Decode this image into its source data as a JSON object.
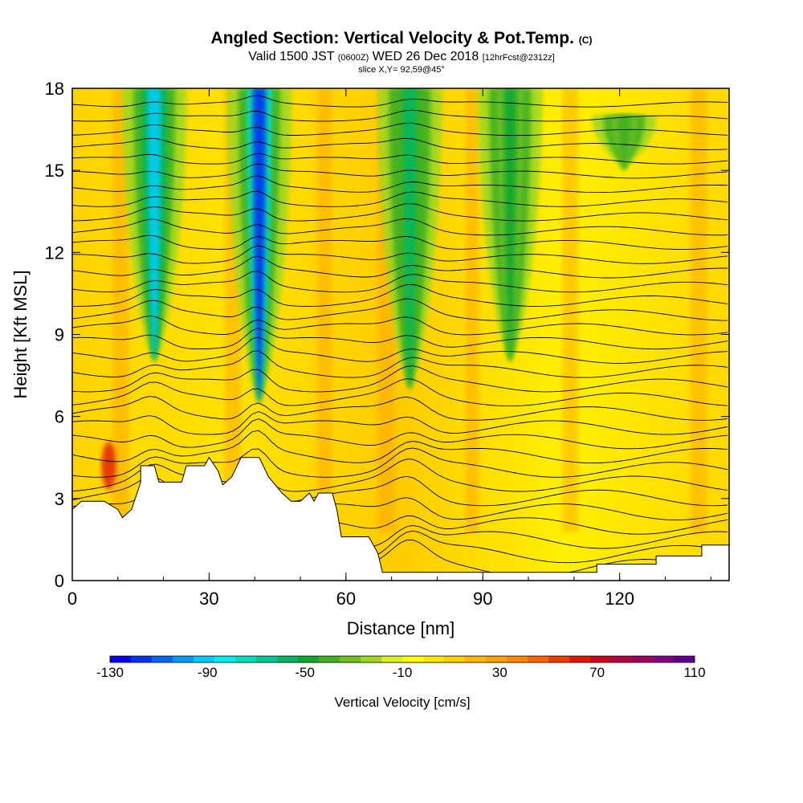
{
  "title": {
    "main": "Angled Section: Vertical Velocity & Pot.Temp.",
    "main_unit": "(C)",
    "valid_prefix": "Valid 1500 JST",
    "valid_utc": "(0600Z)",
    "valid_date": "WED 26 Dec 2018",
    "forecast": "[12hrFcst@2312z]",
    "slice": "slice X,Y= 92,59@45°"
  },
  "chart_data": {
    "type": "heatmap",
    "description_fields": "cross-section of vertical velocity (filled) with potential temperature contours",
    "xlabel": "Distance [nm]",
    "ylabel": "Height [Kft MSL]",
    "xlim": [
      0,
      144
    ],
    "ylim": [
      0,
      18
    ],
    "x_ticks": [
      0,
      30,
      60,
      90,
      120
    ],
    "y_ticks": [
      0,
      3,
      6,
      9,
      12,
      15,
      18
    ],
    "colorbar": {
      "title": "Vertical Velocity [cm/s]",
      "min": -130,
      "max": 110,
      "step": 10,
      "tick_labels": [
        -130,
        -90,
        -50,
        -10,
        30,
        70,
        110
      ],
      "colors": [
        "#0000ee",
        "#0033f2",
        "#0066f6",
        "#0099fa",
        "#00ccfc",
        "#00f0f0",
        "#00dcc0",
        "#00c890",
        "#00b860",
        "#10a830",
        "#40b020",
        "#70c020",
        "#a0d820",
        "#d8f020",
        "#ffff00",
        "#ffe600",
        "#ffd000",
        "#ffb800",
        "#ffa000",
        "#ff8400",
        "#ff6400",
        "#f03c00",
        "#e01800",
        "#d00020",
        "#b80040",
        "#9c0060",
        "#800080",
        "#600090"
      ]
    },
    "updrafts_downdrafts": [
      {
        "x_center": 18,
        "min_velocity": -90,
        "top_kft": 18,
        "base_kft": 8
      },
      {
        "x_center": 41,
        "min_velocity": -120,
        "top_kft": 18,
        "base_kft": 6.5
      },
      {
        "x_center": 74,
        "min_velocity": -50,
        "top_kft": 18,
        "base_kft": 7
      },
      {
        "x_center": 96,
        "min_velocity": -40,
        "top_kft": 18,
        "base_kft": 8
      },
      {
        "x_center": 121,
        "min_velocity": -30,
        "top_kft": 17,
        "base_kft": 15
      }
    ],
    "terrain_kft": [
      [
        0,
        2.6
      ],
      [
        2,
        2.9
      ],
      [
        7,
        2.9
      ],
      [
        10,
        2.6
      ],
      [
        11,
        2.3
      ],
      [
        13,
        2.6
      ],
      [
        14,
        3.1
      ],
      [
        15,
        3.6
      ],
      [
        15,
        4.2
      ],
      [
        18,
        4.2
      ],
      [
        19,
        3.6
      ],
      [
        24,
        3.6
      ],
      [
        25,
        4.2
      ],
      [
        29,
        4.2
      ],
      [
        30,
        4.5
      ],
      [
        32,
        4.0
      ],
      [
        33,
        3.5
      ],
      [
        35,
        3.8
      ],
      [
        37,
        4.5
      ],
      [
        41,
        4.5
      ],
      [
        43,
        3.8
      ],
      [
        46,
        3.2
      ],
      [
        48,
        2.9
      ],
      [
        50,
        2.9
      ],
      [
        52,
        3.2
      ],
      [
        53,
        2.9
      ],
      [
        54,
        3.2
      ],
      [
        57,
        3.2
      ],
      [
        58,
        2.6
      ],
      [
        59,
        1.6
      ],
      [
        65,
        1.6
      ],
      [
        67,
        1.0
      ],
      [
        68,
        0.3
      ],
      [
        115,
        0.3
      ],
      [
        115,
        0.6
      ],
      [
        128,
        0.6
      ],
      [
        128,
        0.9
      ],
      [
        138,
        0.9
      ],
      [
        138,
        1.3
      ],
      [
        144,
        1.3
      ]
    ]
  }
}
